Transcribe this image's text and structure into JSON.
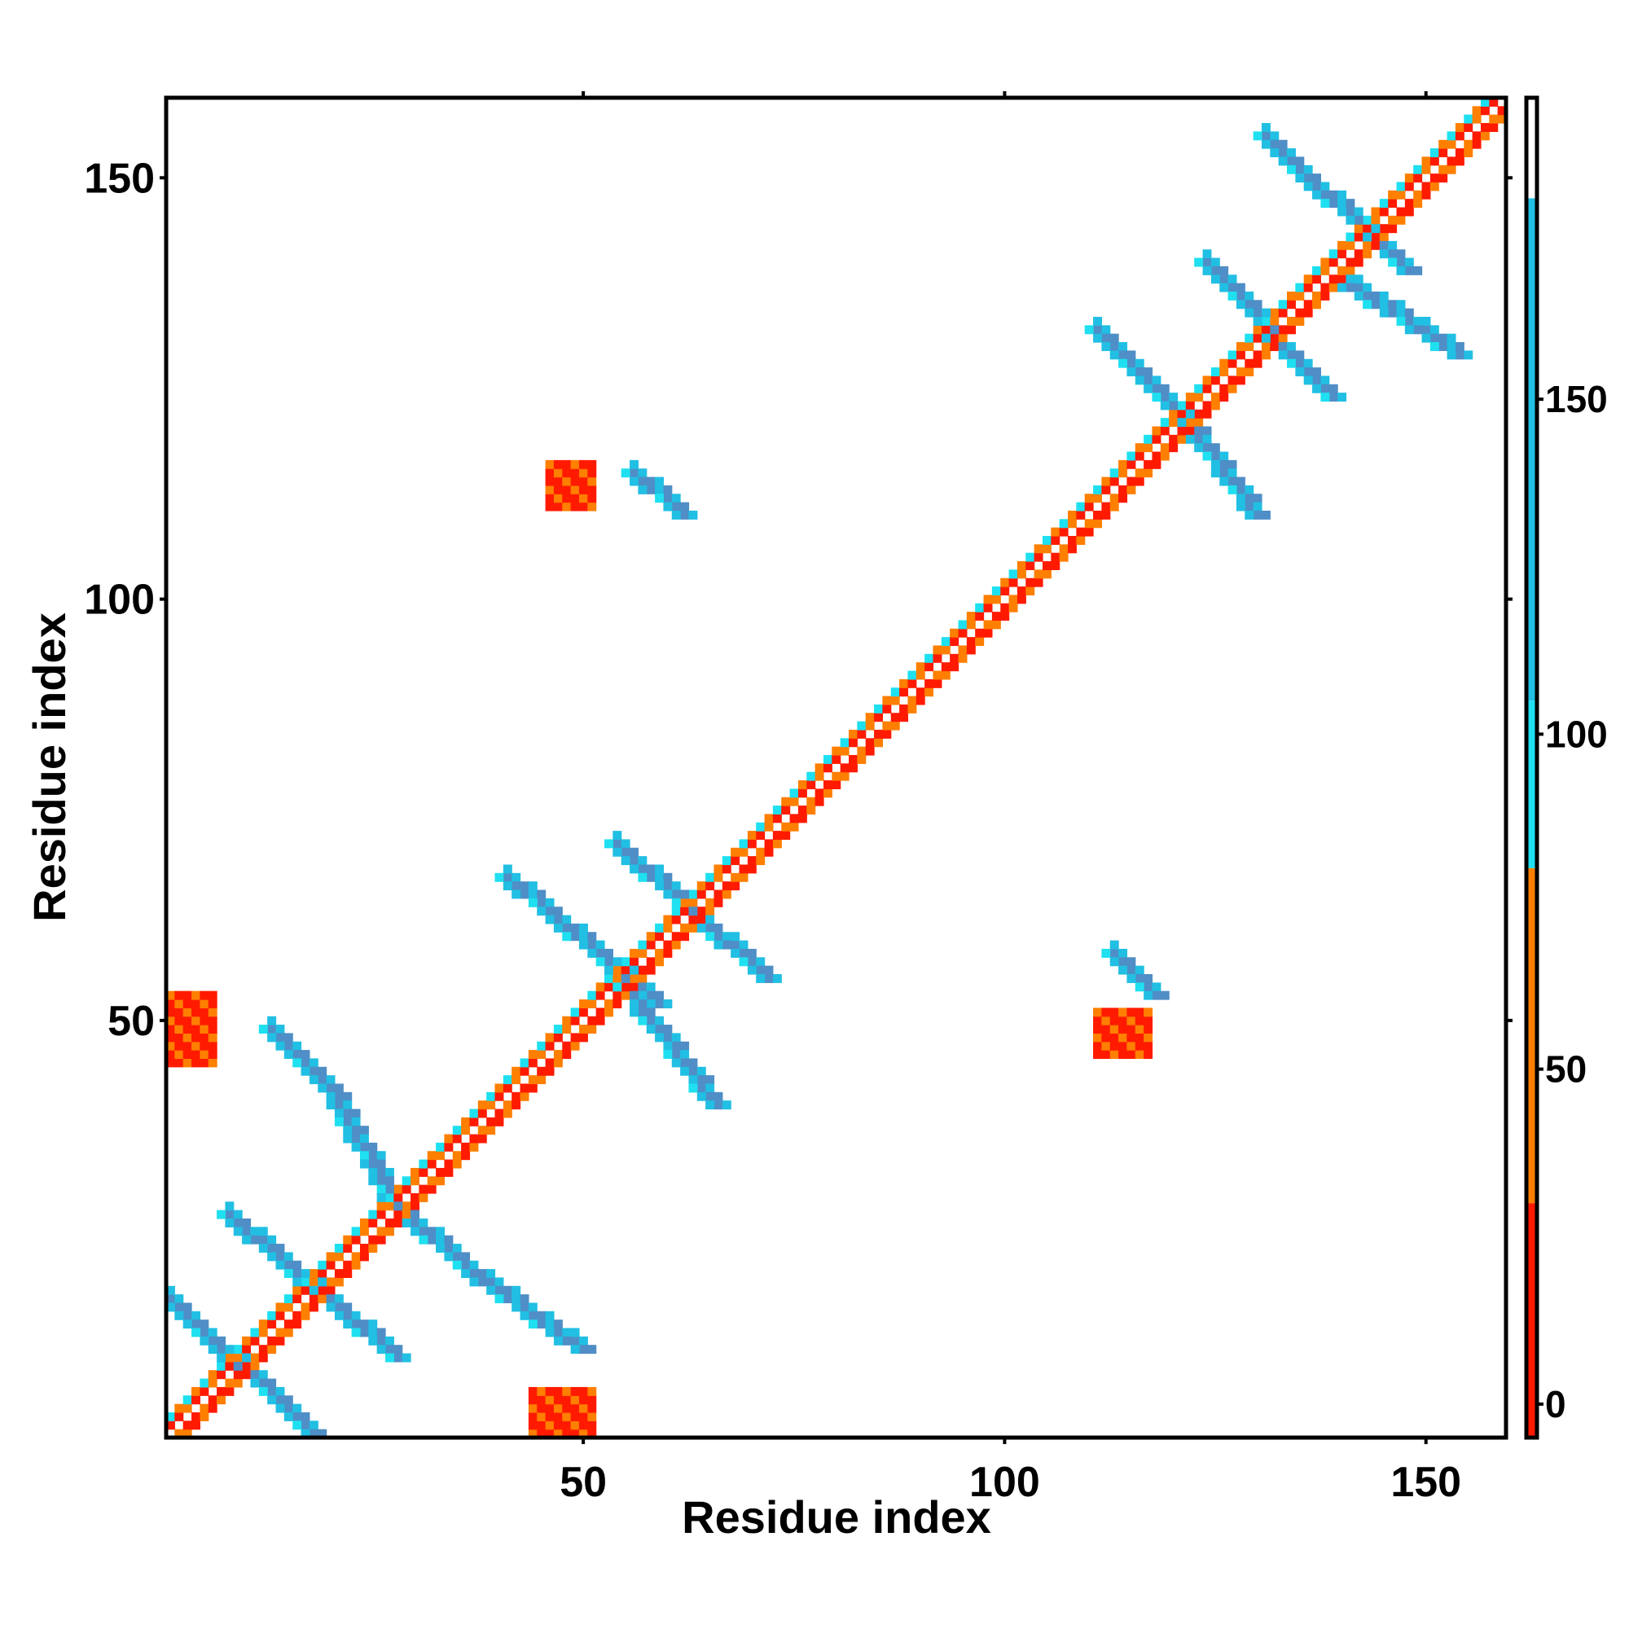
{
  "chart_data": {
    "type": "heatmap",
    "title": "",
    "xlabel": "Residue index",
    "ylabel": "Residue index",
    "xlim": [
      1,
      159
    ],
    "ylim": [
      1,
      159
    ],
    "x_ticks": [
      50,
      100,
      150
    ],
    "y_ticks": [
      50,
      100,
      150
    ],
    "colorbar": {
      "ticks": [
        0,
        50,
        100,
        150
      ],
      "range": [
        -5,
        195
      ],
      "bands": [
        {
          "from": -5,
          "to": 30,
          "color": "#ff1a00"
        },
        {
          "from": 30,
          "to": 80,
          "color": "#ff7f00"
        },
        {
          "from": 80,
          "to": 105,
          "color": "#1ee0f0"
        },
        {
          "from": 105,
          "to": 180,
          "color": "#21bfe3"
        },
        {
          "from": 180,
          "to": 195,
          "color": "#ffffff"
        }
      ]
    },
    "colors": {
      "helix": "#ff1a00",
      "helix_edge": "#ff7f00",
      "sheet_parallel": "#21bfe3",
      "sheet_antiparallel": "#4f8ec6",
      "cross": "#1ee0f0"
    },
    "contact_segments": [
      {
        "kind": "diagonal_helix",
        "x0": 1,
        "y0": 1,
        "x1": 159,
        "y1": 159
      },
      {
        "kind": "sheet",
        "x0": 13,
        "y0": 49,
        "x1": 20,
        "y1": 42
      },
      {
        "kind": "sheet",
        "x0": 20,
        "y0": 42,
        "x1": 28,
        "y1": 28
      },
      {
        "kind": "sheet",
        "x0": 28,
        "y0": 28,
        "x1": 37,
        "y1": 20
      },
      {
        "kind": "sheet",
        "x0": 37,
        "y0": 20,
        "x1": 50,
        "y1": 11
      },
      {
        "kind": "sheet",
        "x0": 8,
        "y0": 27,
        "x1": 28,
        "y1": 10
      },
      {
        "kind": "sheet",
        "x0": 1,
        "y0": 17,
        "x1": 18,
        "y1": 1
      },
      {
        "kind": "sheet",
        "x0": 41,
        "y0": 67,
        "x1": 59,
        "y1": 52
      },
      {
        "kind": "sheet",
        "x0": 54,
        "y0": 71,
        "x1": 72,
        "y1": 55
      },
      {
        "kind": "sheet",
        "x0": 55,
        "y0": 54,
        "x1": 66,
        "y1": 40
      },
      {
        "kind": "sheet",
        "x0": 111,
        "y0": 132,
        "x1": 122,
        "y1": 121
      },
      {
        "kind": "sheet",
        "x0": 122,
        "y0": 121,
        "x1": 130,
        "y1": 110
      },
      {
        "kind": "sheet",
        "x0": 124,
        "y0": 140,
        "x1": 139,
        "y1": 124
      },
      {
        "kind": "sheet",
        "x0": 131,
        "y0": 155,
        "x1": 148,
        "y1": 139
      },
      {
        "kind": "sheet",
        "x0": 140,
        "y0": 138,
        "x1": 154,
        "y1": 129
      },
      {
        "kind": "sheet",
        "x0": 56,
        "y0": 115,
        "x1": 62,
        "y1": 110
      },
      {
        "kind": "sheet",
        "x0": 113,
        "y0": 58,
        "x1": 118,
        "y1": 53
      },
      {
        "kind": "helix_patch",
        "x0": 1,
        "y0": 45,
        "x1": 6,
        "y1": 53
      },
      {
        "kind": "helix_patch",
        "x0": 44,
        "y0": 1,
        "x1": 51,
        "y1": 6
      },
      {
        "kind": "helix_patch",
        "x0": 46,
        "y0": 111,
        "x1": 51,
        "y1": 116
      },
      {
        "kind": "helix_patch",
        "x0": 111,
        "y0": 46,
        "x1": 117,
        "y1": 51
      }
    ]
  }
}
